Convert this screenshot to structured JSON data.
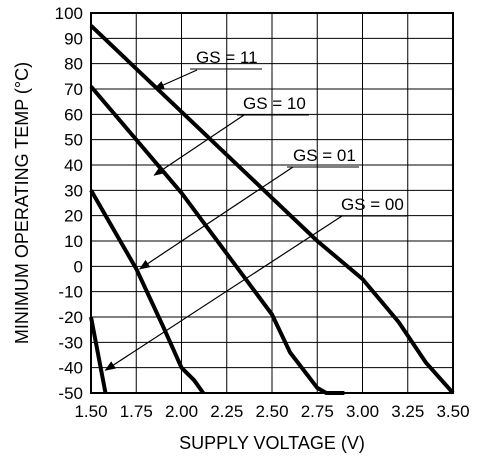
{
  "chart_data": {
    "type": "line",
    "title": "",
    "xlabel": "SUPPLY VOLTAGE (V)",
    "ylabel": "MINIMUM OPERATING TEMP (°C)",
    "xlim": [
      1.5,
      3.5
    ],
    "ylim": [
      -50,
      100
    ],
    "grid": true,
    "legend": "none",
    "x_ticks": [
      "1.50",
      "1.75",
      "2.00",
      "2.25",
      "2.50",
      "2.75",
      "3.00",
      "3.25",
      "3.50"
    ],
    "y_ticks": [
      "100",
      "90",
      "80",
      "70",
      "60",
      "50",
      "40",
      "30",
      "20",
      "10",
      "0",
      "-10",
      "-20",
      "-30",
      "-40",
      "-50"
    ],
    "series": [
      {
        "name": "GS = 11",
        "x": [
          1.5,
          2.0,
          2.5,
          2.75,
          3.0,
          3.2,
          3.35,
          3.5
        ],
        "y": [
          95,
          61,
          27,
          10,
          -5,
          -22,
          -38,
          -50
        ]
      },
      {
        "name": "GS = 10",
        "x": [
          1.5,
          2.0,
          2.25,
          2.5,
          2.6,
          2.75,
          2.8,
          2.9
        ],
        "y": [
          71,
          29,
          5,
          -19,
          -34,
          -48,
          -50,
          -50
        ]
      },
      {
        "name": "GS = 01",
        "x": [
          1.5,
          1.75,
          1.9,
          2.0,
          2.07,
          2.12
        ],
        "y": [
          30,
          -1,
          -24,
          -40,
          -45,
          -50
        ]
      },
      {
        "name": "GS = 00",
        "x": [
          1.5,
          1.58
        ],
        "y": [
          -20,
          -50
        ]
      }
    ],
    "annotations": [
      {
        "text": "GS = 11",
        "series": "GS = 11",
        "at": [
          1.85,
          70
        ]
      },
      {
        "text": "GS = 10",
        "series": "GS = 10",
        "at": [
          1.85,
          36
        ]
      },
      {
        "text": "GS = 01",
        "series": "GS = 01",
        "at": [
          1.77,
          -1
        ]
      },
      {
        "text": "GS = 00",
        "series": "GS = 00",
        "at": [
          1.58,
          -41
        ]
      }
    ]
  }
}
